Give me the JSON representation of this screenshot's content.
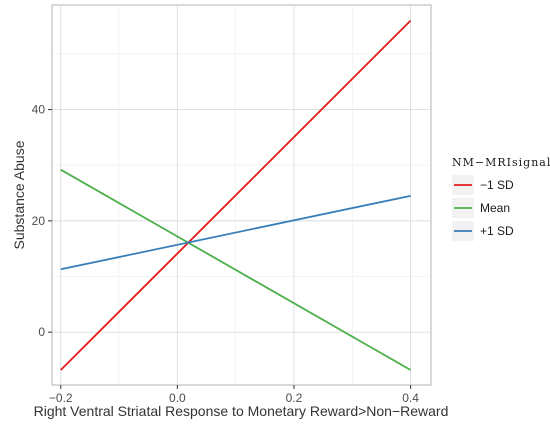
{
  "chart_data": {
    "type": "line",
    "title": "",
    "xlabel": "Right Ventral Striatal Response to Monetary Reward>Non−Reward",
    "ylabel": "Substance Abuse",
    "xlim": [
      -0.215,
      0.435
    ],
    "ylim": [
      -9.5,
      58.8
    ],
    "x_ticks": [
      -0.2,
      0.0,
      0.2,
      0.4
    ],
    "x_tick_labels": [
      "−0.2",
      "0.0",
      "0.2",
      "0.4"
    ],
    "y_ticks": [
      0,
      20,
      40
    ],
    "y_tick_labels": [
      "0",
      "20",
      "40"
    ],
    "grid": true,
    "legend": {
      "title": "NM−MRIsignal",
      "position": "right"
    },
    "series": [
      {
        "name": "−1 SD",
        "color": "#e41a1c",
        "x": [
          -0.2,
          0.4
        ],
        "y": [
          -6.8,
          56.0
        ]
      },
      {
        "name": "Mean",
        "color": "#4daf4a",
        "x": [
          -0.2,
          0.4
        ],
        "y": [
          29.2,
          -6.8
        ]
      },
      {
        "name": "+1 SD",
        "color": "#377eb8",
        "x": [
          -0.2,
          0.4
        ],
        "y": [
          11.3,
          24.5
        ]
      }
    ]
  }
}
